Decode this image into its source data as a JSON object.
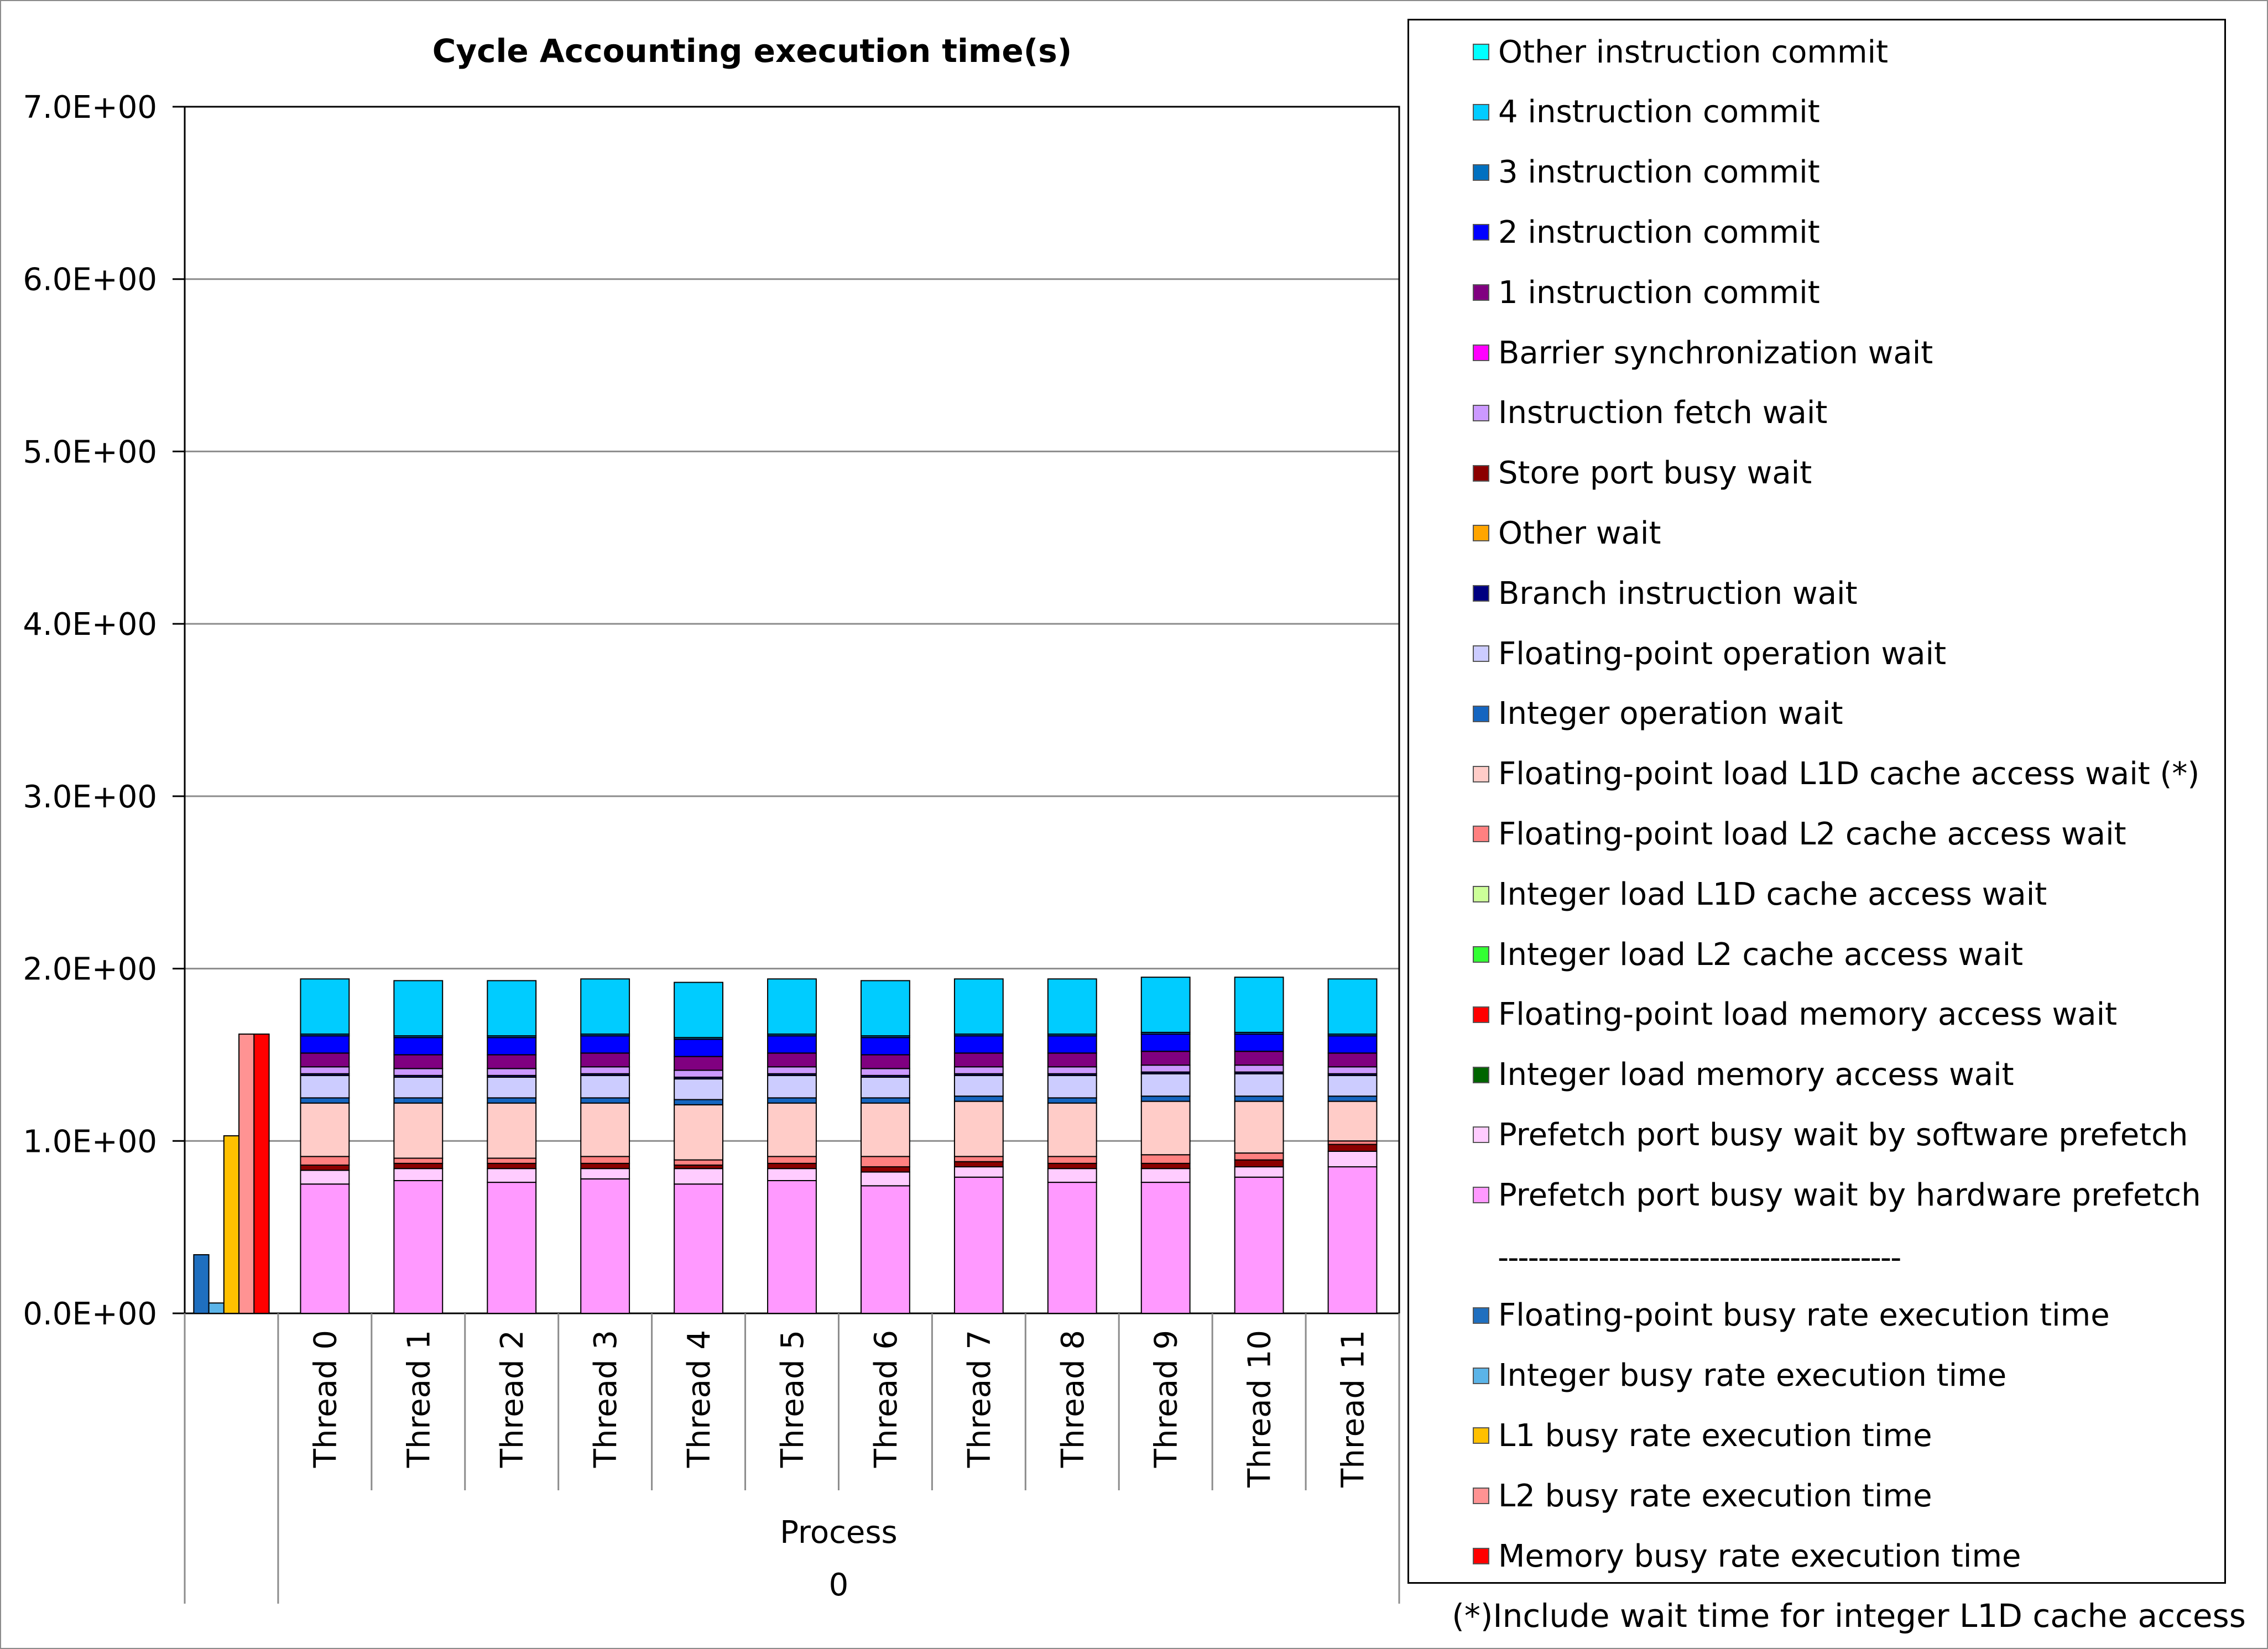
{
  "chart_data": {
    "type": "bar",
    "title": "Cycle Accounting execution time(s)",
    "xlabel": "Process",
    "xgroup_label": "0",
    "ylabel": "",
    "ylim": [
      0,
      7
    ],
    "y_ticks": [
      0,
      1,
      2,
      3,
      4,
      5,
      6,
      7
    ],
    "y_tick_labels": [
      "0.0E+00",
      "1.0E+00",
      "2.0E+00",
      "3.0E+00",
      "4.0E+00",
      "5.0E+00",
      "6.0E+00",
      "7.0E+00"
    ],
    "grid": true,
    "legend_position": "right",
    "busy_series": [
      {
        "name": "Floating-point busy rate execution time",
        "color": "#1f6fbf",
        "value": 0.34
      },
      {
        "name": "Integer busy rate execution time",
        "color": "#5bb4e8",
        "value": 0.06
      },
      {
        "name": "L1 busy rate execution time",
        "color": "#ffc000",
        "value": 1.03
      },
      {
        "name": "L2 busy rate execution time",
        "color": "#ff9393",
        "value": 1.62
      },
      {
        "name": "Memory busy rate execution time",
        "color": "#ff0000",
        "value": 1.62
      }
    ],
    "categories": [
      "Thread 0",
      "Thread 1",
      "Thread 2",
      "Thread 3",
      "Thread 4",
      "Thread 5",
      "Thread 6",
      "Thread 7",
      "Thread 8",
      "Thread 9",
      "Thread 10",
      "Thread 11"
    ],
    "series": [
      {
        "name": "Prefetch port busy wait by hardware prefetch",
        "color": "#ff99ff",
        "values": [
          0.75,
          0.77,
          0.76,
          0.78,
          0.75,
          0.77,
          0.74,
          0.79,
          0.76,
          0.76,
          0.79,
          0.85
        ]
      },
      {
        "name": "Prefetch port busy wait by software prefetch",
        "color": "#ffccff",
        "values": [
          0.08,
          0.07,
          0.08,
          0.06,
          0.09,
          0.07,
          0.08,
          0.06,
          0.08,
          0.08,
          0.06,
          0.09
        ]
      },
      {
        "name": "Integer load memory access wait",
        "color": "#006400",
        "values": [
          0,
          0,
          0,
          0,
          0,
          0,
          0,
          0,
          0,
          0,
          0,
          0
        ]
      },
      {
        "name": "Floating-point load memory access wait",
        "color": "#ff0000",
        "values": [
          0,
          0,
          0,
          0,
          0,
          0,
          0,
          0,
          0,
          0,
          0,
          0
        ]
      },
      {
        "name": "Integer load L2 cache access wait",
        "color": "#33ff33",
        "values": [
          0,
          0,
          0,
          0,
          0,
          0,
          0,
          0,
          0,
          0,
          0,
          0
        ]
      },
      {
        "name": "Integer load L1D cache access wait",
        "color": "#ccff99",
        "values": [
          0,
          0,
          0,
          0,
          0,
          0,
          0,
          0,
          0,
          0,
          0,
          0
        ]
      },
      {
        "name": "Store port busy wait",
        "color": "#8b0000",
        "values": [
          0.03,
          0.03,
          0.03,
          0.03,
          0.02,
          0.03,
          0.03,
          0.03,
          0.03,
          0.03,
          0.04,
          0.04
        ]
      },
      {
        "name": "Floating-point load L2 cache access wait",
        "color": "#ff8080",
        "values": [
          0.05,
          0.03,
          0.03,
          0.04,
          0.03,
          0.04,
          0.06,
          0.03,
          0.04,
          0.05,
          0.04,
          0.02
        ]
      },
      {
        "name": "Floating-point load L1D cache access wait (*)",
        "color": "#ffccc8",
        "values": [
          0.31,
          0.32,
          0.32,
          0.31,
          0.32,
          0.31,
          0.31,
          0.32,
          0.31,
          0.31,
          0.3,
          0.23
        ]
      },
      {
        "name": "Integer operation wait",
        "color": "#1565c0",
        "values": [
          0.03,
          0.03,
          0.03,
          0.03,
          0.03,
          0.03,
          0.03,
          0.03,
          0.03,
          0.03,
          0.03,
          0.03
        ]
      },
      {
        "name": "Floating-point operation wait",
        "color": "#ccccff",
        "values": [
          0.13,
          0.12,
          0.12,
          0.13,
          0.12,
          0.13,
          0.12,
          0.12,
          0.13,
          0.13,
          0.13,
          0.12
        ]
      },
      {
        "name": "Branch instruction wait",
        "color": "#000080",
        "values": [
          0.01,
          0.01,
          0.01,
          0.01,
          0.01,
          0.01,
          0.01,
          0.01,
          0.01,
          0.01,
          0.01,
          0.01
        ]
      },
      {
        "name": "Other wait",
        "color": "#ffa500",
        "values": [
          0,
          0,
          0,
          0,
          0,
          0,
          0,
          0,
          0,
          0,
          0,
          0
        ]
      },
      {
        "name": "Instruction fetch wait",
        "color": "#cc99ff",
        "values": [
          0.04,
          0.04,
          0.04,
          0.04,
          0.04,
          0.04,
          0.04,
          0.04,
          0.04,
          0.04,
          0.04,
          0.04
        ]
      },
      {
        "name": "Barrier synchronization wait",
        "color": "#ff00ff",
        "values": [
          0,
          0,
          0,
          0,
          0,
          0,
          0,
          0,
          0,
          0,
          0,
          0
        ]
      },
      {
        "name": "1 instruction commit",
        "color": "#800080",
        "values": [
          0.08,
          0.08,
          0.08,
          0.08,
          0.08,
          0.08,
          0.08,
          0.08,
          0.08,
          0.08,
          0.08,
          0.08
        ]
      },
      {
        "name": "2 instruction commit",
        "color": "#0000ff",
        "values": [
          0.1,
          0.1,
          0.1,
          0.1,
          0.1,
          0.1,
          0.1,
          0.1,
          0.1,
          0.1,
          0.1,
          0.1
        ]
      },
      {
        "name": "3 instruction commit",
        "color": "#0070c0",
        "values": [
          0.01,
          0.01,
          0.01,
          0.01,
          0.01,
          0.01,
          0.01,
          0.01,
          0.01,
          0.01,
          0.01,
          0.01
        ]
      },
      {
        "name": "4 instruction commit",
        "color": "#00ccff",
        "values": [
          0.32,
          0.32,
          0.32,
          0.32,
          0.32,
          0.32,
          0.32,
          0.32,
          0.32,
          0.32,
          0.32,
          0.32
        ]
      },
      {
        "name": "Other instruction commit",
        "color": "#00ffff",
        "values": [
          0,
          0,
          0,
          0,
          0,
          0,
          0,
          0,
          0,
          0,
          0,
          0
        ]
      }
    ],
    "legend_items": [
      {
        "label": "Other instruction commit",
        "color": "#00ffff"
      },
      {
        "label": "4 instruction commit",
        "color": "#00ccff"
      },
      {
        "label": "3 instruction commit",
        "color": "#0070c0"
      },
      {
        "label": "2 instruction commit",
        "color": "#0000ff"
      },
      {
        "label": "1 instruction commit",
        "color": "#800080"
      },
      {
        "label": "Barrier synchronization wait",
        "color": "#ff00ff"
      },
      {
        "label": "Instruction fetch wait",
        "color": "#cc99ff"
      },
      {
        "label": "Store port busy wait",
        "color": "#8b0000"
      },
      {
        "label": "Other wait",
        "color": "#ffa500"
      },
      {
        "label": "Branch instruction wait",
        "color": "#000080"
      },
      {
        "label": "Floating-point operation wait",
        "color": "#ccccff"
      },
      {
        "label": "Integer operation wait",
        "color": "#1565c0"
      },
      {
        "label": "Floating-point load L1D cache access wait (*)",
        "color": "#ffccc8"
      },
      {
        "label": "Floating-point load L2 cache access wait",
        "color": "#ff8080"
      },
      {
        "label": "Integer load L1D cache access wait",
        "color": "#ccff99"
      },
      {
        "label": "Integer load L2 cache access wait",
        "color": "#33ff33"
      },
      {
        "label": "Floating-point load memory access wait",
        "color": "#ff0000"
      },
      {
        "label": "Integer load memory access wait",
        "color": "#006400"
      },
      {
        "label": "Prefetch port busy wait by software prefetch",
        "color": "#ffccff"
      },
      {
        "label": "Prefetch port busy wait by hardware prefetch",
        "color": "#ff99ff"
      },
      {
        "label": "----------------------------------------",
        "separator": true
      },
      {
        "label": "Floating-point busy rate execution time",
        "color": "#1f6fbf"
      },
      {
        "label": "Integer busy rate execution time",
        "color": "#5bb4e8"
      },
      {
        "label": "L1 busy rate execution time",
        "color": "#ffc000"
      },
      {
        "label": "L2 busy rate execution time",
        "color": "#ff9393"
      },
      {
        "label": "Memory busy rate execution time",
        "color": "#ff0000"
      }
    ],
    "footnote": "(*)Include wait time for integer L1D cache access"
  }
}
